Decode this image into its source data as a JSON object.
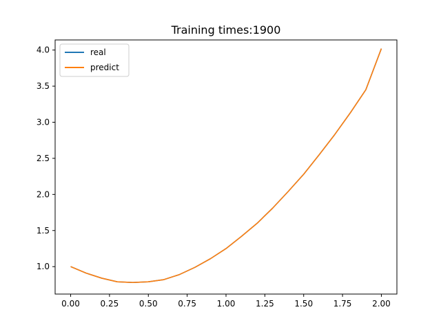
{
  "chart_data": {
    "type": "line",
    "title": "Training times:1900",
    "xlabel": "",
    "ylabel": "",
    "xlim": [
      -0.1,
      2.1
    ],
    "ylim": [
      0.62,
      4.14
    ],
    "grid": false,
    "legend_position": "top-left",
    "x_ticks": [
      0.0,
      0.25,
      0.5,
      0.75,
      1.0,
      1.25,
      1.5,
      1.75,
      2.0
    ],
    "x_tick_labels": [
      "0.00",
      "0.25",
      "0.50",
      "0.75",
      "1.00",
      "1.25",
      "1.50",
      "1.75",
      "2.00"
    ],
    "y_ticks": [
      1.0,
      1.5,
      2.0,
      2.5,
      3.0,
      3.5,
      4.0
    ],
    "y_tick_labels": [
      "1.0",
      "1.5",
      "2.0",
      "2.5",
      "3.0",
      "3.5",
      "4.0"
    ],
    "x": [
      0.0,
      0.1,
      0.2,
      0.3,
      0.4,
      0.5,
      0.6,
      0.7,
      0.8,
      0.9,
      1.0,
      1.1,
      1.2,
      1.3,
      1.4,
      1.5,
      1.6,
      1.7,
      1.8,
      1.9,
      2.0
    ],
    "series": [
      {
        "name": "real",
        "color": "#1f77b4",
        "values": [
          1.0,
          0.91,
          0.84,
          0.79,
          0.78,
          0.79,
          0.82,
          0.89,
          0.99,
          1.11,
          1.25,
          1.42,
          1.6,
          1.81,
          2.04,
          2.28,
          2.55,
          2.83,
          3.13,
          3.45,
          4.02
        ]
      },
      {
        "name": "predict",
        "color": "#ff7f0e",
        "values": [
          1.0,
          0.91,
          0.84,
          0.79,
          0.78,
          0.79,
          0.82,
          0.89,
          0.99,
          1.11,
          1.25,
          1.42,
          1.6,
          1.81,
          2.04,
          2.28,
          2.55,
          2.83,
          3.13,
          3.45,
          4.02
        ]
      }
    ]
  }
}
